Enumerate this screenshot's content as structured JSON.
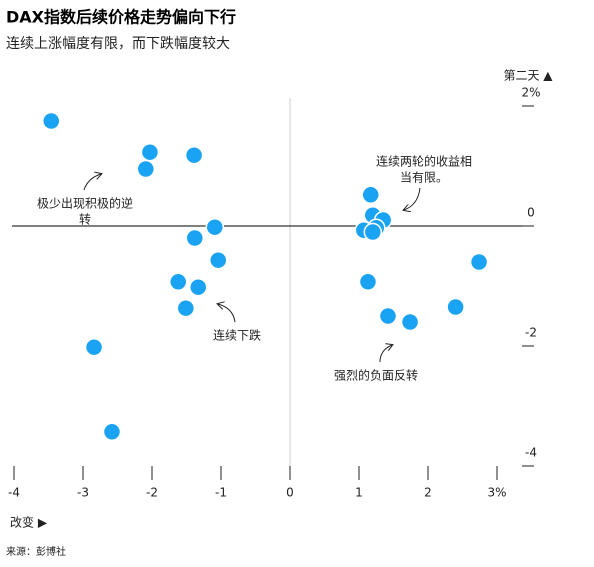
{
  "chart_data": {
    "type": "scatter",
    "title": "DAX指数后续价格走势偏向下行",
    "subtitle": "连续上涨幅度有限，而下跌幅度较大",
    "x_label": "改变 ▶",
    "y_label": "第二天 ▲",
    "source": "来源：彭博社",
    "color": "#1aa3f2",
    "xlim": [
      -4,
      3
    ],
    "ylim": [
      -4,
      2
    ],
    "xticks": [
      -4,
      -3,
      -2,
      -1,
      0,
      1,
      2,
      {
        "value": 3,
        "label": "3%"
      }
    ],
    "yticks": [
      {
        "value": 2,
        "label": "2%"
      },
      0,
      -2,
      -4
    ],
    "x": [
      -3.46,
      -2.03,
      -1.39,
      -2.09,
      -1.09,
      -1.38,
      -1.04,
      -1.62,
      -1.33,
      -1.51,
      -2.84,
      -2.58,
      1.17,
      1.2,
      1.35,
      1.07,
      1.25,
      1.2,
      1.13,
      2.74,
      2.4,
      1.42,
      1.74
    ],
    "values": [
      1.75,
      1.23,
      1.18,
      0.95,
      -0.02,
      -0.2,
      -0.57,
      -0.93,
      -1.02,
      -1.37,
      -2.02,
      -3.43,
      0.52,
      0.18,
      0.1,
      -0.07,
      -0.03,
      -0.1,
      -0.93,
      -0.6,
      -1.35,
      -1.5,
      -1.6
    ],
    "annotations": [
      {
        "lines": [
          "极少出现积极的逆",
          "转"
        ]
      },
      {
        "lines": [
          "连续两轮的收益相",
          "当有限。"
        ]
      },
      {
        "lines": [
          "连续下跌"
        ]
      },
      {
        "lines": [
          "强烈的负面反转"
        ]
      }
    ]
  }
}
